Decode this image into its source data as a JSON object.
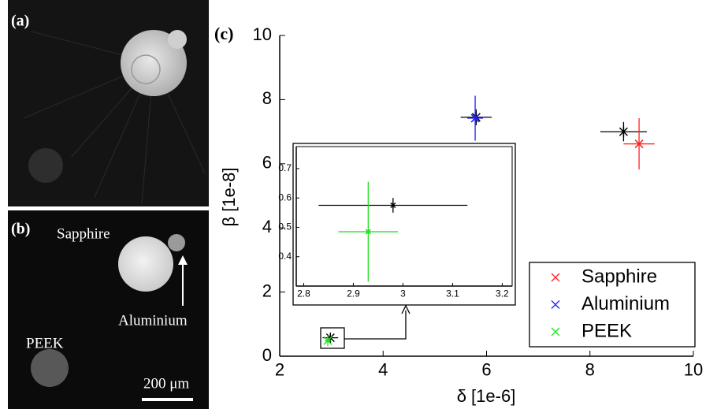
{
  "images": {
    "panel_a": "(a)",
    "panel_b": "(b)",
    "label_sapphire": "Sapphire",
    "label_aluminium": "Aluminium",
    "label_peek": "PEEK",
    "scale_bar": "200 μm"
  },
  "chart_data": {
    "type": "scatter",
    "panel_label": "(c)",
    "x_label": "δ [1e-6]",
    "y_label": "β [1e-8]",
    "xlim": [
      2,
      10
    ],
    "ylim": [
      0,
      10
    ],
    "xticks": [
      2,
      4,
      6,
      8,
      10
    ],
    "yticks": [
      0,
      2,
      4,
      6,
      8,
      10
    ],
    "legend_position": "lower right",
    "series": [
      {
        "name": "Sapphire",
        "color": "#ff2020",
        "x": [
          8.95
        ],
        "values": [
          6.62
        ],
        "xerr": [
          0.3
        ],
        "yerr": [
          0.8
        ]
      },
      {
        "name": "Aluminium",
        "color": "#2020ff",
        "x": [
          5.78
        ],
        "values": [
          7.42
        ],
        "xerr": [
          0.15
        ],
        "yerr": [
          0.7
        ]
      },
      {
        "name": "PEEK",
        "color": "#20e020",
        "x": [
          2.93
        ],
        "values": [
          0.485
        ],
        "xerr": [
          0.06
        ],
        "yerr": [
          0.17
        ]
      }
    ],
    "reference": {
      "color": "#000000",
      "x": [
        8.65,
        5.8,
        2.98
      ],
      "values": [
        7.0,
        7.45,
        0.575
      ],
      "xerr": [
        0.45,
        0.3,
        0.15
      ],
      "yerr": [
        0.3,
        0.25,
        0.025
      ]
    },
    "inset": {
      "xlim": [
        2.785,
        3.22
      ],
      "ylim": [
        0.3,
        0.775
      ],
      "xticks": [
        2.8,
        2.9,
        3,
        3.1,
        3.2
      ],
      "yticks": [
        0.4,
        0.5,
        0.6,
        0.7
      ]
    }
  }
}
